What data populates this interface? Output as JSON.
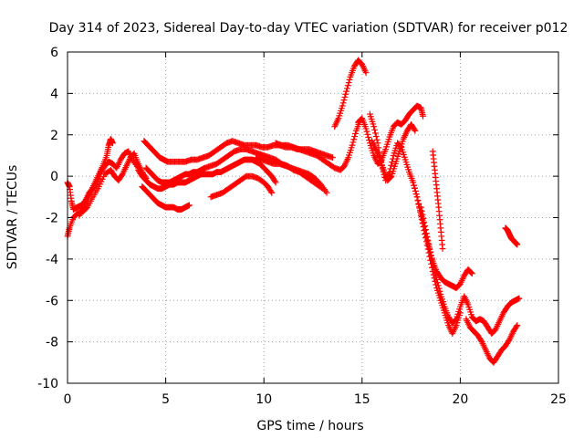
{
  "chart_data": {
    "type": "scatter",
    "title": "Day 314 of 2023, Sidereal Day-to-day VTEC variation (SDTVAR) for receiver p012",
    "xlabel": "GPS time / hours",
    "ylabel": "SDTVAR / TECUs",
    "xlim": [
      0,
      25
    ],
    "ylim": [
      -10,
      6
    ],
    "xticks": [
      0,
      5,
      10,
      15,
      20,
      25
    ],
    "xtick_labels": [
      "0",
      "5",
      "10",
      "15",
      "20",
      "25"
    ],
    "yticks": [
      -10,
      -8,
      -6,
      -4,
      -2,
      0,
      2,
      4,
      6
    ],
    "ytick_labels": [
      "-10",
      "-8",
      "-6",
      "-4",
      "-2",
      "0",
      "2",
      "4",
      "6"
    ],
    "grid": true,
    "marker": "+",
    "color": "#ff0000",
    "series": [
      {
        "x": [
          0.0,
          0.1,
          0.2,
          0.3,
          0.5,
          0.7,
          0.9,
          1.1,
          1.3,
          1.5,
          1.7,
          1.9,
          2.1,
          2.3,
          2.5,
          2.7,
          2.9,
          3.1,
          3.3,
          3.6
        ],
        "y": [
          -0.3,
          -0.5,
          -1.2,
          -1.6,
          -1.5,
          -1.4,
          -1.2,
          -0.8,
          -0.6,
          -0.3,
          0.2,
          0.5,
          0.7,
          0.6,
          0.4,
          0.8,
          1.1,
          1.2,
          0.8,
          0.4
        ]
      },
      {
        "x": [
          0.0,
          0.1,
          0.3,
          0.5,
          0.8,
          1.0,
          1.3,
          1.6,
          1.9,
          2.2,
          2.4,
          2.6,
          2.8,
          3.0,
          3.2,
          3.4,
          3.6,
          3.8,
          4.0
        ],
        "y": [
          -2.9,
          -2.5,
          -2.0,
          -1.8,
          -1.7,
          -1.5,
          -1.0,
          -0.5,
          0.1,
          0.3,
          0.0,
          -0.2,
          0.1,
          0.5,
          0.9,
          1.1,
          0.6,
          0.2,
          -0.1
        ]
      },
      {
        "x": [
          0.6,
          0.8,
          1.0,
          1.2,
          1.4,
          1.6,
          1.8,
          2.0,
          2.1,
          2.2,
          2.3
        ],
        "y": [
          -1.9,
          -1.5,
          -1.1,
          -0.7,
          -0.3,
          0.1,
          0.5,
          1.0,
          1.5,
          1.8,
          1.6
        ]
      },
      {
        "x": [
          3.9,
          4.1,
          4.3,
          4.5,
          4.7,
          4.9,
          5.1,
          5.4,
          5.7,
          6.0,
          6.3,
          6.6,
          6.9,
          7.2,
          7.5,
          7.8,
          8.1,
          8.4,
          8.7,
          9.0,
          9.3,
          9.6,
          9.9,
          10.2,
          10.5,
          10.8,
          11.1,
          11.4,
          11.7,
          12.0,
          12.3,
          12.6,
          12.9,
          13.2,
          13.5
        ],
        "y": [
          1.7,
          1.5,
          1.3,
          1.1,
          0.9,
          0.8,
          0.7,
          0.7,
          0.7,
          0.7,
          0.8,
          0.8,
          0.9,
          1.0,
          1.2,
          1.4,
          1.6,
          1.7,
          1.6,
          1.5,
          1.5,
          1.5,
          1.4,
          1.4,
          1.5,
          1.5,
          1.4,
          1.4,
          1.3,
          1.3,
          1.3,
          1.2,
          1.1,
          1.0,
          0.9
        ]
      },
      {
        "x": [
          4.0,
          4.2,
          4.4,
          4.6,
          4.8,
          5.0,
          5.2,
          5.4,
          5.6,
          5.8,
          6.0,
          6.2,
          6.4,
          6.6,
          6.8,
          7.0,
          7.3,
          7.6,
          7.9,
          8.2,
          8.5,
          8.8,
          9.1,
          9.4,
          9.7,
          10.0,
          10.3,
          10.6,
          10.9,
          11.2,
          11.5,
          11.8,
          12.1,
          12.4,
          12.7,
          13.0
        ],
        "y": [
          0.4,
          0.2,
          0.0,
          -0.2,
          -0.3,
          -0.3,
          -0.3,
          -0.2,
          -0.1,
          0.0,
          0.1,
          0.1,
          0.2,
          0.2,
          0.3,
          0.4,
          0.5,
          0.6,
          0.8,
          1.0,
          1.2,
          1.3,
          1.3,
          1.2,
          1.1,
          1.0,
          0.9,
          0.8,
          0.6,
          0.5,
          0.3,
          0.2,
          0.0,
          -0.2,
          -0.4,
          -0.6
        ]
      },
      {
        "x": [
          3.6,
          3.8,
          4.0,
          4.2,
          4.4,
          4.6,
          4.8,
          5.0,
          5.2,
          5.4,
          5.6,
          5.8,
          6.0,
          6.2,
          6.4,
          6.6,
          6.8,
          7.0,
          7.2,
          7.4,
          7.6,
          7.8,
          8.0,
          8.2,
          8.4,
          8.6,
          8.8,
          9.0,
          9.2,
          9.4,
          9.6,
          9.8,
          10.0,
          10.2,
          10.4,
          10.6
        ],
        "y": [
          0.3,
          0.0,
          -0.2,
          -0.4,
          -0.5,
          -0.6,
          -0.6,
          -0.5,
          -0.4,
          -0.4,
          -0.3,
          -0.3,
          -0.3,
          -0.2,
          -0.1,
          0.0,
          0.1,
          0.1,
          0.1,
          0.1,
          0.2,
          0.2,
          0.3,
          0.4,
          0.5,
          0.6,
          0.7,
          0.8,
          0.8,
          0.8,
          0.7,
          0.6,
          0.4,
          0.2,
          0.0,
          -0.3
        ]
      },
      {
        "x": [
          3.8,
          4.0,
          4.2,
          4.4,
          4.6,
          4.8,
          5.0,
          5.2,
          5.4,
          5.6,
          5.8,
          6.0,
          6.2
        ],
        "y": [
          -0.5,
          -0.7,
          -0.9,
          -1.1,
          -1.3,
          -1.4,
          -1.5,
          -1.5,
          -1.5,
          -1.6,
          -1.6,
          -1.5,
          -1.4
        ]
      },
      {
        "x": [
          7.3,
          7.6,
          7.9,
          8.2,
          8.5,
          8.8,
          9.1,
          9.4,
          9.7,
          10.0,
          10.2,
          10.4
        ],
        "y": [
          -1.0,
          -0.9,
          -0.8,
          -0.6,
          -0.4,
          -0.2,
          0.0,
          0.0,
          -0.1,
          -0.3,
          -0.5,
          -0.8
        ]
      },
      {
        "x": [
          9.6,
          9.9,
          10.2,
          10.5,
          10.8,
          11.1,
          11.4,
          11.7,
          12.0,
          12.3,
          12.6,
          12.9,
          13.2
        ],
        "y": [
          0.9,
          0.8,
          0.7,
          0.6,
          0.6,
          0.5,
          0.4,
          0.3,
          0.2,
          0.1,
          -0.1,
          -0.4,
          -0.8
        ]
      },
      {
        "x": [
          10.6,
          10.9,
          11.2,
          11.5,
          11.8,
          12.1,
          12.4,
          12.7,
          13.0,
          13.3,
          13.6,
          13.9,
          14.1,
          14.3,
          14.5,
          14.7,
          14.9
        ],
        "y": [
          1.6,
          1.5,
          1.5,
          1.4,
          1.3,
          1.2,
          1.1,
          1.0,
          0.8,
          0.6,
          0.4,
          0.3,
          0.5,
          0.9,
          1.5,
          2.2,
          2.7
        ]
      },
      {
        "x": [
          13.6,
          13.8,
          14.0,
          14.2,
          14.4,
          14.6,
          14.8,
          15.0,
          15.2
        ],
        "y": [
          2.4,
          2.8,
          3.4,
          4.1,
          4.8,
          5.3,
          5.6,
          5.4,
          5.0
        ]
      },
      {
        "x": [
          14.8,
          15.0,
          15.2,
          15.4,
          15.6,
          15.8,
          16.0,
          16.2,
          16.4,
          16.6,
          16.8,
          17.0,
          17.2,
          17.4,
          17.6,
          17.8,
          18.0,
          18.1
        ],
        "y": [
          2.6,
          2.8,
          2.3,
          1.6,
          1.0,
          0.6,
          0.8,
          1.3,
          1.9,
          2.4,
          2.6,
          2.5,
          2.7,
          3.0,
          3.2,
          3.4,
          3.3,
          2.9
        ]
      },
      {
        "x": [
          15.4,
          15.6,
          15.8,
          16.0,
          16.2,
          16.4,
          16.6,
          16.8,
          17.0,
          17.2,
          17.4,
          17.6,
          17.8,
          18.0,
          18.2,
          18.4,
          18.6,
          18.8,
          19.0,
          19.2,
          19.4,
          19.6,
          19.8,
          20.0,
          20.2,
          20.4,
          20.6
        ],
        "y": [
          3.0,
          2.4,
          1.6,
          0.5,
          -0.2,
          0.2,
          1.0,
          1.6,
          1.4,
          0.8,
          0.2,
          -0.3,
          -1.0,
          -1.8,
          -2.6,
          -3.4,
          -4.1,
          -4.6,
          -4.9,
          -5.1,
          -5.2,
          -5.3,
          -5.4,
          -5.2,
          -4.8,
          -4.5,
          -4.7
        ]
      },
      {
        "x": [
          17.6,
          17.8,
          18.0,
          18.2,
          18.4,
          18.6,
          18.8,
          19.0,
          19.2,
          19.4,
          19.6,
          19.8,
          20.0
        ],
        "y": [
          -0.3,
          -1.0,
          -1.9,
          -2.8,
          -3.7,
          -4.6,
          -5.4,
          -6.0,
          -6.6,
          -7.2,
          -7.6,
          -7.2,
          -6.6
        ]
      },
      {
        "x": [
          18.0,
          18.2,
          18.4,
          18.6,
          18.8,
          19.0,
          19.2,
          19.4,
          19.6,
          19.8,
          20.0,
          20.2,
          20.4,
          20.6,
          20.8,
          21.0,
          21.2,
          21.4,
          21.6,
          21.8,
          22.0,
          22.2,
          22.4,
          22.6,
          22.8,
          23.0
        ],
        "y": [
          -1.5,
          -2.4,
          -3.3,
          -4.2,
          -5.0,
          -5.7,
          -6.3,
          -6.8,
          -7.1,
          -6.9,
          -6.3,
          -5.8,
          -6.2,
          -6.8,
          -7.0,
          -6.9,
          -7.0,
          -7.3,
          -7.6,
          -7.4,
          -7.0,
          -6.6,
          -6.3,
          -6.1,
          -6.0,
          -5.9
        ]
      },
      {
        "x": [
          18.6,
          18.7,
          18.8,
          18.9,
          19.0,
          19.1
        ],
        "y": [
          1.2,
          0.3,
          -0.6,
          -1.5,
          -2.5,
          -3.5
        ]
      },
      {
        "x": [
          20.3,
          20.5,
          20.7,
          20.9,
          21.1,
          21.3,
          21.5,
          21.7,
          21.9,
          22.1,
          22.3,
          22.5,
          22.7,
          22.9
        ],
        "y": [
          -6.9,
          -7.3,
          -7.5,
          -7.7,
          -8.0,
          -8.4,
          -8.8,
          -9.0,
          -8.7,
          -8.4,
          -8.2,
          -7.9,
          -7.5,
          -7.2
        ]
      },
      {
        "x": [
          22.3,
          22.4,
          22.5,
          22.6,
          22.7,
          22.8,
          22.9
        ],
        "y": [
          -2.5,
          -2.6,
          -2.8,
          -3.0,
          -3.1,
          -3.2,
          -3.3
        ]
      },
      {
        "x": [
          15.5,
          15.7,
          15.9,
          16.1,
          16.3,
          16.5,
          16.7,
          16.9,
          17.1,
          17.3,
          17.5,
          17.7
        ],
        "y": [
          1.7,
          1.3,
          0.9,
          0.3,
          -0.2,
          0.0,
          0.6,
          1.2,
          1.8,
          2.2,
          2.5,
          2.2
        ]
      }
    ]
  }
}
